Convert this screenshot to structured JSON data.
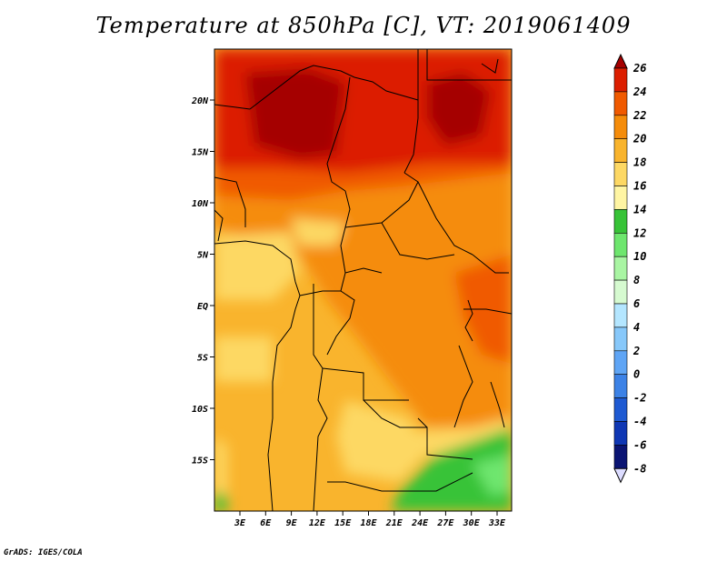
{
  "title": "Temperature at 850hPa [C], VT: 2019061409",
  "credit": "GrADS: IGES/COLA",
  "map": {
    "lat_labels": [
      "20N",
      "15N",
      "10N",
      "5N",
      "EQ",
      "5S",
      "10S",
      "15S"
    ],
    "lon_labels": [
      "3E",
      "6E",
      "9E",
      "12E",
      "15E",
      "18E",
      "21E",
      "24E",
      "27E",
      "30E",
      "33E"
    ]
  },
  "colorbar": {
    "labels": [
      "26",
      "24",
      "22",
      "20",
      "18",
      "16",
      "14",
      "12",
      "10",
      "8",
      "6",
      "4",
      "2",
      "0",
      "-2",
      "-4",
      "-6",
      "-8"
    ],
    "colors": [
      "#a50000",
      "#dc1e00",
      "#f05a00",
      "#f58c0a",
      "#f9b42d",
      "#fdd864",
      "#fff5a3",
      "#37c337",
      "#6ee66e",
      "#a9f5a3",
      "#d6fad0",
      "#b4e6ff",
      "#87c8fa",
      "#5fa5f5",
      "#3c82e6",
      "#1e5ad2",
      "#0f37b4",
      "#0a1473",
      "#dcdcff"
    ]
  }
}
